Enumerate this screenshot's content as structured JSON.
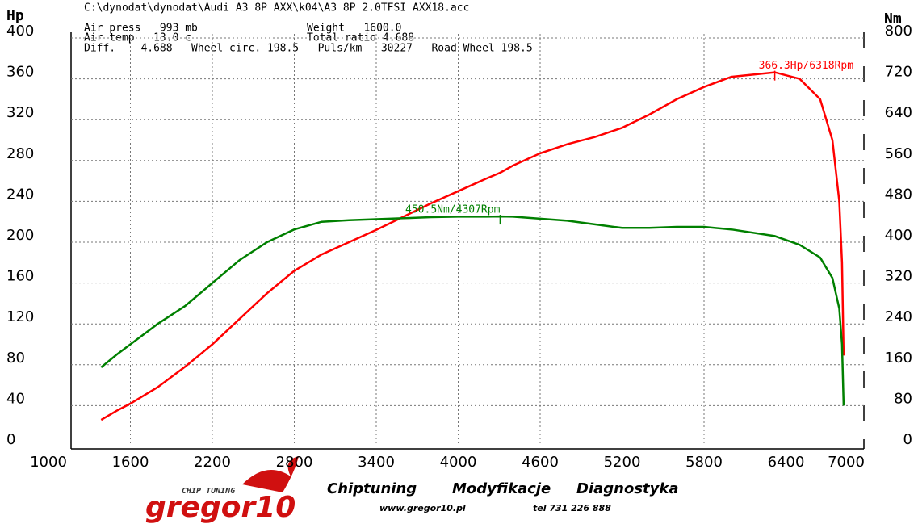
{
  "chart_data": {
    "type": "line",
    "title": "C:\\dynodat\\dynodat\\Audi A3 8P AXX\\k04\\A3 8P 2.0TFSI AXX18.acc",
    "info": [
      [
        "Air press   993 mb",
        "Weight   1600.0"
      ],
      [
        "Air temp   13.0 c",
        "Total ratio 4.688"
      ],
      [
        "Diff.    4.688   Wheel circ. 198.5   Puls/km   30227   Road Wheel 198.5"
      ]
    ],
    "ylabel": "Hp",
    "y2label": "Nm",
    "x": [
      1386,
      1500,
      1600,
      1800,
      2000,
      2200,
      2400,
      2600,
      2800,
      3000,
      3200,
      3400,
      3600,
      3800,
      4000,
      4200,
      4307,
      4400,
      4600,
      4800,
      5000,
      5200,
      5400,
      5600,
      5800,
      6000,
      6318,
      6500,
      6650,
      6740,
      6790,
      6810,
      6822
    ],
    "series": [
      {
        "color": "#ff0000",
        "axis": "y",
        "values": [
          26,
          35,
          42,
          58,
          78,
          100,
          125,
          150,
          172,
          188,
          200,
          212,
          225,
          238,
          250,
          262,
          268,
          275,
          287,
          296,
          303,
          312,
          325,
          340,
          352,
          362,
          366.3,
          360,
          340,
          300,
          240,
          180,
          89
        ]
      },
      {
        "color": "#008000",
        "axis": "y2",
        "values": [
          155,
          180,
          200,
          240,
          275,
          320,
          365,
          400,
          425,
          440,
          443,
          445,
          447,
          449,
          450,
          450,
          450.5,
          450,
          446,
          442,
          435,
          428,
          428,
          430,
          430,
          425,
          412,
          395,
          370,
          330,
          270,
          200,
          80
        ]
      }
    ],
    "annotations": [
      "366.3Hp/6318Rpm",
      "450.5Nm/4307Rpm"
    ],
    "xlim": [
      1000,
      7000
    ],
    "xticks": [
      1000,
      1600,
      2200,
      2800,
      3400,
      4000,
      4600,
      5200,
      5800,
      6400,
      7000
    ],
    "ylim": [
      0,
      400
    ],
    "yticks": [
      0,
      40,
      80,
      120,
      160,
      200,
      240,
      280,
      320,
      360,
      400
    ],
    "y2lim": [
      0,
      800
    ],
    "y2ticks": [
      0,
      80,
      160,
      240,
      320,
      400,
      480,
      560,
      640,
      720,
      800
    ],
    "grid": true
  },
  "footer": {
    "brand": "gregor10",
    "tagline": "CHIP TUNING",
    "services": [
      "Chiptuning",
      "Modyfikacje",
      "Diagnostyka"
    ],
    "web": "www.gregor10.pl",
    "phone": "tel 731 226 888"
  }
}
